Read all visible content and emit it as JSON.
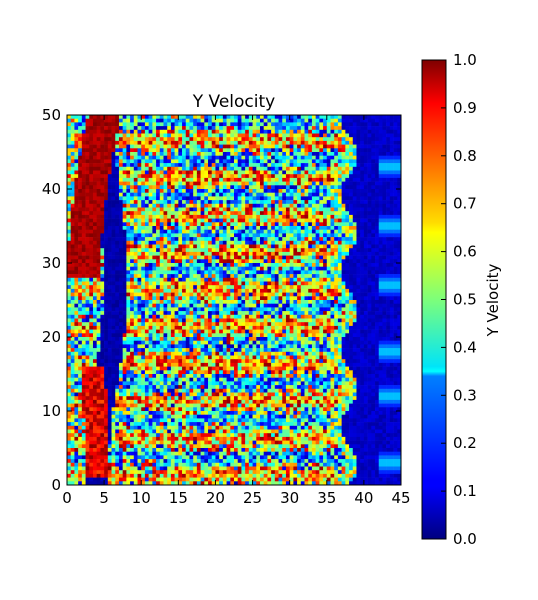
{
  "chart_data": {
    "type": "heatmap",
    "title": "Y Velocity",
    "xlabel": "",
    "ylabel": "",
    "xlim": [
      0,
      45
    ],
    "ylim": [
      0,
      50
    ],
    "x_ticks": [
      "0",
      "5",
      "10",
      "15",
      "20",
      "25",
      "30",
      "35",
      "40",
      "45"
    ],
    "y_ticks": [
      "0",
      "10",
      "20",
      "30",
      "40",
      "50"
    ],
    "colormap": "jet",
    "colorbar": {
      "label": "Y Velocity",
      "range": [
        0.0,
        1.0
      ],
      "ticks": [
        "0.0",
        "0.1",
        "0.2",
        "0.3",
        "0.4",
        "0.5",
        "0.6",
        "0.7",
        "0.8",
        "0.9",
        "1.0"
      ]
    },
    "regions": [
      {
        "description": "high-velocity diagonal band near left edge",
        "x_range": [
          0,
          8
        ],
        "y_range": [
          0,
          50
        ],
        "value": 0.95
      },
      {
        "description": "low-velocity channel left of center",
        "x_range": [
          3,
          8
        ],
        "y_range": [
          0,
          50
        ],
        "value": 0.02
      },
      {
        "description": "noisy mixed field",
        "x_range": [
          8,
          37
        ],
        "y_range": [
          0,
          50
        ],
        "value_range": [
          0.0,
          1.0
        ]
      },
      {
        "description": "low-velocity wake region",
        "x_range": [
          37,
          45
        ],
        "y_range": [
          0,
          50
        ],
        "value": 0.05
      }
    ],
    "grid": false,
    "legend": "colorbar-right"
  }
}
